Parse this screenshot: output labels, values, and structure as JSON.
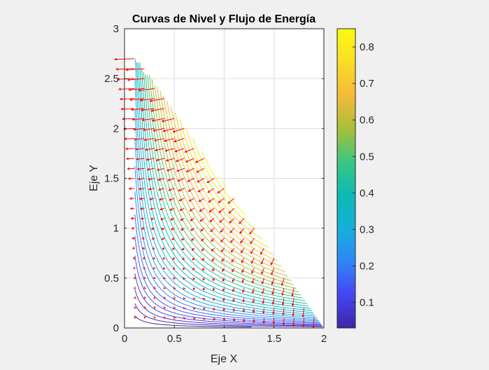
{
  "chart_data": {
    "type": "contour",
    "title": "Curvas de Nivel y Flujo de Energía",
    "xlabel": "Eje X",
    "ylabel": "Eje Y",
    "xlim": [
      0,
      2
    ],
    "ylim": [
      0,
      3
    ],
    "xticks": [
      0,
      0.5,
      1,
      1.5,
      2
    ],
    "xtick_labels": [
      "0",
      "0.5",
      "1",
      "1.5",
      "2"
    ],
    "yticks": [
      0,
      0.5,
      1,
      1.5,
      2,
      2.5,
      3
    ],
    "ytick_labels": [
      "0",
      "0.5",
      "1",
      "1.5",
      "2",
      "2.5",
      "3"
    ],
    "grid": true,
    "colorbar": {
      "range": [
        0.03,
        0.85
      ],
      "ticks": [
        0.1,
        0.2,
        0.3,
        0.4,
        0.5,
        0.6,
        0.7,
        0.8
      ],
      "tick_labels": [
        "0.1",
        "0.2",
        "0.3",
        "0.4",
        "0.5",
        "0.6",
        "0.7",
        "0.8"
      ],
      "colormap": [
        "#3e26a8",
        "#4745f4",
        "#2e87f7",
        "#16afd9",
        "#0bbbb4",
        "#3bc680",
        "#a9bf38",
        "#f5b93a",
        "#fbdc28",
        "#f9fb0e"
      ]
    },
    "contour_levels": {
      "min": 0.03,
      "max": 0.85,
      "count": 34
    },
    "domain": "x + 0.69*y <= 2",
    "quiver": {
      "color": "#ff0000",
      "x_range": [
        0.1,
        1.9
      ],
      "y_range": [
        0.1,
        2.7
      ],
      "step": 0.1
    }
  }
}
